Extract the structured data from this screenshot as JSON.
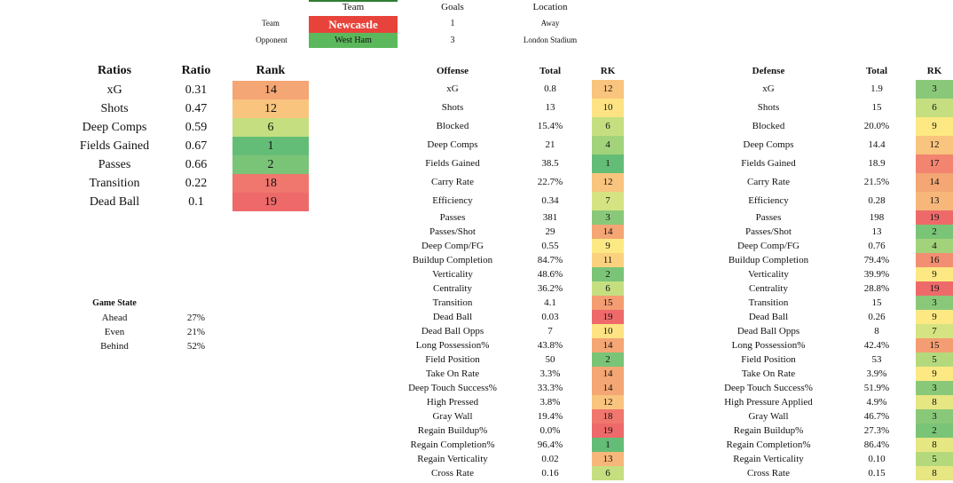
{
  "header": {
    "col_team": "Team",
    "col_goals": "Goals",
    "col_location": "Location",
    "team_label": "Team",
    "opponent_label": "Opponent",
    "team_name": "Newcastle",
    "team_goals": "1",
    "team_location": "Away",
    "opponent_name": "West Ham",
    "opponent_goals": "3",
    "opponent_location": "London Stadium",
    "team_color": "#e8433a",
    "opponent_color": "#5cb85c"
  },
  "ratios": {
    "h_ratios": "Ratios",
    "h_ratio": "Ratio",
    "h_rank": "Rank",
    "rows": [
      {
        "name": "xG",
        "ratio": "0.31",
        "rank": "14",
        "color": "#f4a674"
      },
      {
        "name": "Shots",
        "ratio": "0.47",
        "rank": "12",
        "color": "#f9c47e"
      },
      {
        "name": "Deep Comps",
        "ratio": "0.59",
        "rank": "6",
        "color": "#c5df80"
      },
      {
        "name": "Fields Gained",
        "ratio": "0.67",
        "rank": "1",
        "color": "#64bd76"
      },
      {
        "name": "Passes",
        "ratio": "0.66",
        "rank": "2",
        "color": "#7ac477"
      },
      {
        "name": "Transition",
        "ratio": "0.22",
        "rank": "18",
        "color": "#f0776e"
      },
      {
        "name": "Dead Ball",
        "ratio": "0.1",
        "rank": "19",
        "color": "#ee6a6a"
      }
    ]
  },
  "game_state": {
    "title": "Game State",
    "rows": [
      {
        "label": "Ahead",
        "value": "27%"
      },
      {
        "label": "Even",
        "value": "21%"
      },
      {
        "label": "Behind",
        "value": "52%"
      }
    ]
  },
  "offense": {
    "h_name": "Offense",
    "h_total": "Total",
    "h_rk": "RK",
    "rows": [
      {
        "name": "xG",
        "total": "0.8",
        "rk": "12",
        "color": "#f9c47e"
      },
      {
        "name": "Shots",
        "total": "13",
        "rk": "10",
        "color": "#fde383"
      },
      {
        "name": "Blocked",
        "total": "15.4%",
        "rk": "6",
        "color": "#c5df80"
      },
      {
        "name": "Deep Comps",
        "total": "21",
        "rk": "4",
        "color": "#a2d37b"
      },
      {
        "name": "Fields Gained",
        "total": "38.5",
        "rk": "1",
        "color": "#64bd76"
      },
      {
        "name": "Carry Rate",
        "total": "22.7%",
        "rk": "12",
        "color": "#f9c47e"
      },
      {
        "name": "Efficiency",
        "total": "0.34",
        "rk": "7",
        "color": "#d6e382"
      },
      {
        "name": "Passes",
        "total": "381",
        "rk": "3",
        "color": "#8ac879"
      },
      {
        "name": "Passes/Shot",
        "total": "29",
        "rk": "14",
        "color": "#f4a674"
      },
      {
        "name": "Deep Comp/FG",
        "total": "0.55",
        "rk": "9",
        "color": "#fde983"
      },
      {
        "name": "Buildup Completion",
        "total": "84.7%",
        "rk": "11",
        "color": "#fbd180"
      },
      {
        "name": "Verticality",
        "total": "48.6%",
        "rk": "2",
        "color": "#7ac477"
      },
      {
        "name": "Centrality",
        "total": "36.2%",
        "rk": "6",
        "color": "#c5df80"
      },
      {
        "name": "Transition",
        "total": "4.1",
        "rk": "15",
        "color": "#f49d72"
      },
      {
        "name": "Dead Ball",
        "total": "0.03",
        "rk": "19",
        "color": "#ee6a6a"
      },
      {
        "name": "Dead Ball Opps",
        "total": "7",
        "rk": "10",
        "color": "#fde383"
      },
      {
        "name": "Long Possession%",
        "total": "43.8%",
        "rk": "14",
        "color": "#f4a674"
      },
      {
        "name": "Field Position",
        "total": "50",
        "rk": "2",
        "color": "#7ac477"
      },
      {
        "name": "Take On Rate",
        "total": "3.3%",
        "rk": "14",
        "color": "#f4a674"
      },
      {
        "name": "Deep Touch Success%",
        "total": "33.3%",
        "rk": "14",
        "color": "#f4a674"
      },
      {
        "name": "High Pressed",
        "total": "3.8%",
        "rk": "12",
        "color": "#f9c47e"
      },
      {
        "name": "Gray Wall",
        "total": "19.4%",
        "rk": "18",
        "color": "#f0776e"
      },
      {
        "name": "Regain Buildup%",
        "total": "0.0%",
        "rk": "19",
        "color": "#ee6a6a"
      },
      {
        "name": "Regain Completion%",
        "total": "96.4%",
        "rk": "1",
        "color": "#64bd76"
      },
      {
        "name": "Regain Verticality",
        "total": "0.02",
        "rk": "13",
        "color": "#f7b77a"
      },
      {
        "name": "Cross Rate",
        "total": "0.16",
        "rk": "6",
        "color": "#c5df80"
      }
    ]
  },
  "defense": {
    "h_name": "Defense",
    "h_total": "Total",
    "h_rk": "RK",
    "rows": [
      {
        "name": "xG",
        "total": "1.9",
        "rk": "3",
        "color": "#8ac879"
      },
      {
        "name": "Shots",
        "total": "15",
        "rk": "6",
        "color": "#c5df80"
      },
      {
        "name": "Blocked",
        "total": "20.0%",
        "rk": "9",
        "color": "#fde983"
      },
      {
        "name": "Deep Comps",
        "total": "14.4",
        "rk": "12",
        "color": "#f9c47e"
      },
      {
        "name": "Fields Gained",
        "total": "18.9",
        "rk": "17",
        "color": "#f28470"
      },
      {
        "name": "Carry Rate",
        "total": "21.5%",
        "rk": "14",
        "color": "#f4a674"
      },
      {
        "name": "Efficiency",
        "total": "0.28",
        "rk": "13",
        "color": "#f7b77a"
      },
      {
        "name": "Passes",
        "total": "198",
        "rk": "19",
        "color": "#ee6a6a"
      },
      {
        "name": "Passes/Shot",
        "total": "13",
        "rk": "2",
        "color": "#7ac477"
      },
      {
        "name": "Deep Comp/FG",
        "total": "0.76",
        "rk": "4",
        "color": "#a2d37b"
      },
      {
        "name": "Buildup Completion",
        "total": "79.4%",
        "rk": "16",
        "color": "#f28f72"
      },
      {
        "name": "Verticality",
        "total": "39.9%",
        "rk": "9",
        "color": "#fde983"
      },
      {
        "name": "Centrality",
        "total": "28.8%",
        "rk": "19",
        "color": "#ee6a6a"
      },
      {
        "name": "Transition",
        "total": "15",
        "rk": "3",
        "color": "#8ac879"
      },
      {
        "name": "Dead Ball",
        "total": "0.26",
        "rk": "9",
        "color": "#fde983"
      },
      {
        "name": "Dead Ball Opps",
        "total": "8",
        "rk": "7",
        "color": "#d6e382"
      },
      {
        "name": "Long Possession%",
        "total": "42.4%",
        "rk": "15",
        "color": "#f49d72"
      },
      {
        "name": "Field Position",
        "total": "53",
        "rk": "5",
        "color": "#b4d97d"
      },
      {
        "name": "Take On Rate",
        "total": "3.9%",
        "rk": "9",
        "color": "#fde983"
      },
      {
        "name": "Deep Touch Success%",
        "total": "51.9%",
        "rk": "3",
        "color": "#8ac879"
      },
      {
        "name": "High Pressure Applied",
        "total": "4.9%",
        "rk": "8",
        "color": "#e6e683"
      },
      {
        "name": "Gray Wall",
        "total": "46.7%",
        "rk": "3",
        "color": "#8ac879"
      },
      {
        "name": "Regain Buildup%",
        "total": "27.3%",
        "rk": "2",
        "color": "#7ac477"
      },
      {
        "name": "Regain Completion%",
        "total": "86.4%",
        "rk": "8",
        "color": "#e6e683"
      },
      {
        "name": "Regain Verticality",
        "total": "0.10",
        "rk": "5",
        "color": "#b4d97d"
      },
      {
        "name": "Cross Rate",
        "total": "0.15",
        "rk": "8",
        "color": "#e6e683"
      }
    ]
  }
}
